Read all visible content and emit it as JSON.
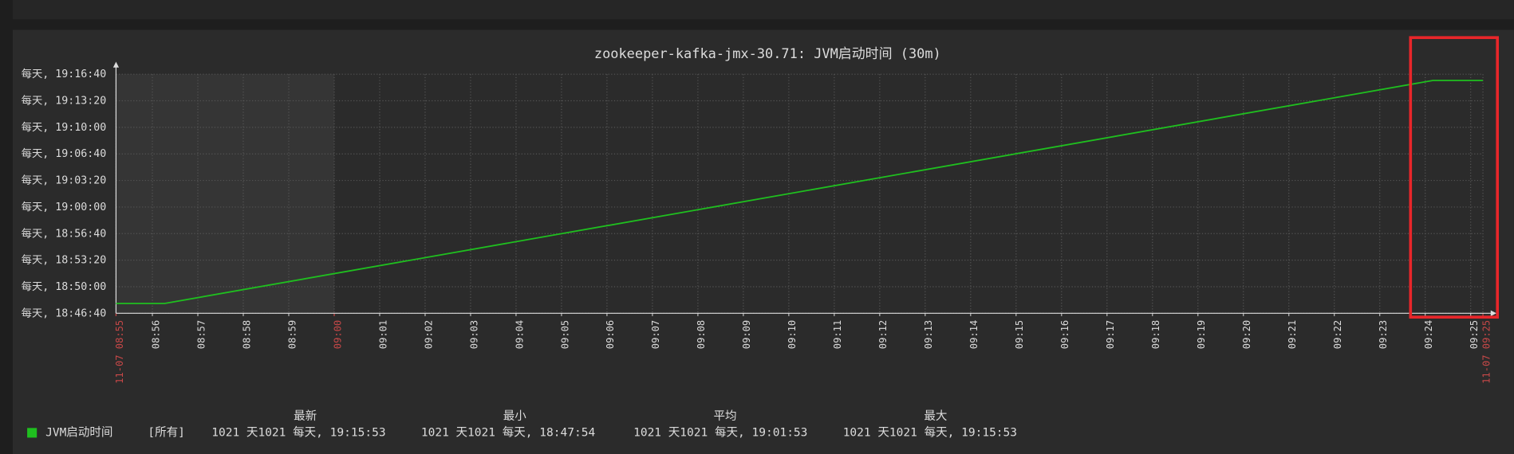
{
  "chart_data": {
    "type": "line",
    "title": "zookeeper-kafka-jmx-30.71: JVM启动时间 (30m)",
    "x": [
      535.2,
      536.27,
      564.17,
      565.27
    ],
    "xlim": [
      535.2,
      565.27
    ],
    "xticks": [
      {
        "value": 536,
        "label": "08:56"
      },
      {
        "value": 537,
        "label": "08:57"
      },
      {
        "value": 538,
        "label": "08:58"
      },
      {
        "value": 539,
        "label": "08:59"
      },
      {
        "value": 541,
        "label": "09:01"
      },
      {
        "value": 542,
        "label": "09:02"
      },
      {
        "value": 543,
        "label": "09:03"
      },
      {
        "value": 544,
        "label": "09:04"
      },
      {
        "value": 545,
        "label": "09:05"
      },
      {
        "value": 546,
        "label": "09:06"
      },
      {
        "value": 547,
        "label": "09:07"
      },
      {
        "value": 548,
        "label": "09:08"
      },
      {
        "value": 549,
        "label": "09:09"
      },
      {
        "value": 550,
        "label": "09:10"
      },
      {
        "value": 551,
        "label": "09:11"
      },
      {
        "value": 552,
        "label": "09:12"
      },
      {
        "value": 553,
        "label": "09:13"
      },
      {
        "value": 554,
        "label": "09:14"
      },
      {
        "value": 555,
        "label": "09:15"
      },
      {
        "value": 556,
        "label": "09:16"
      },
      {
        "value": 557,
        "label": "09:17"
      },
      {
        "value": 558,
        "label": "09:18"
      },
      {
        "value": 559,
        "label": "09:19"
      },
      {
        "value": 560,
        "label": "09:20"
      },
      {
        "value": 561,
        "label": "09:21"
      },
      {
        "value": 562,
        "label": "09:22"
      },
      {
        "value": 563,
        "label": "09:23"
      },
      {
        "value": 564,
        "label": "09:24"
      },
      {
        "value": 565,
        "label": "09:25"
      }
    ],
    "xticks_major": [
      {
        "value": 535.2,
        "label": "11-07 08:55"
      },
      {
        "value": 540,
        "label": "09:00"
      },
      {
        "value": 565.27,
        "label": "11-07 09:25"
      }
    ],
    "major_tick_color": "#c84848",
    "ylim": [
      67600,
      69400
    ],
    "yticks": [
      {
        "value": 67600,
        "label": "每天, 18:46:40"
      },
      {
        "value": 67800,
        "label": "每天, 18:50:00"
      },
      {
        "value": 68000,
        "label": "每天, 18:53:20"
      },
      {
        "value": 68200,
        "label": "每天, 18:56:40"
      },
      {
        "value": 68400,
        "label": "每天, 19:00:00"
      },
      {
        "value": 68600,
        "label": "每天, 19:03:20"
      },
      {
        "value": 68800,
        "label": "每天, 19:06:40"
      },
      {
        "value": 69000,
        "label": "每天, 19:10:00"
      },
      {
        "value": 69200,
        "label": "每天, 19:13:20"
      },
      {
        "value": 69400,
        "label": "每天, 19:16:40"
      }
    ],
    "grid": true,
    "series": [
      {
        "name": "JVM启动时间",
        "color": "#1fbf1f",
        "values": [
          67674,
          67674,
          69353,
          69353
        ],
        "stats": [
          "1021 天1021 每天, 19:15:53",
          "1021 天1021 每天, 18:47:54",
          "1021 天1021 每天, 19:01:53",
          "1021 天1021 每天, 19:15:53"
        ]
      }
    ],
    "legend_scope": "[所有]",
    "legend_headers": [
      "最新",
      "最小",
      "平均",
      "最大"
    ]
  }
}
